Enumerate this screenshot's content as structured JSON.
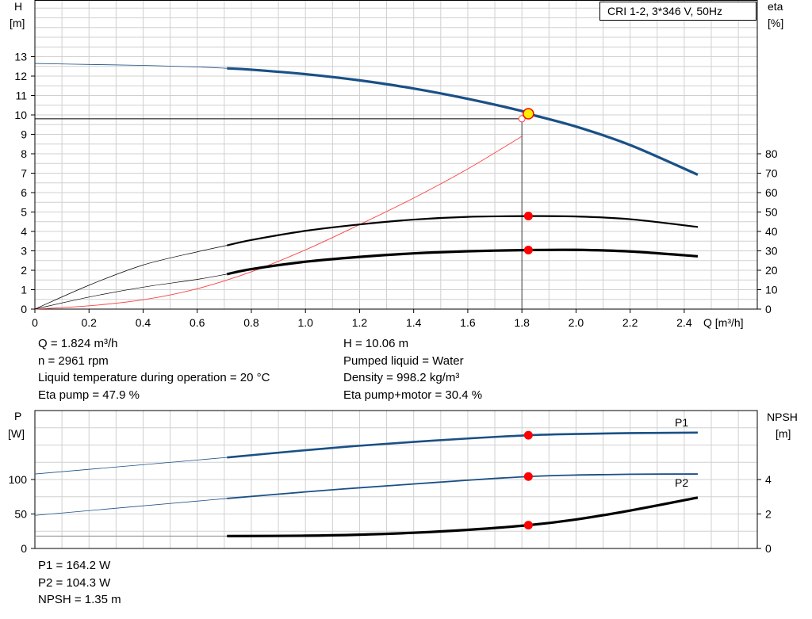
{
  "header": {
    "pump_label": "CRI 1-2, 3*346 V, 50Hz"
  },
  "upper_info": {
    "left": [
      "Q = 1.824 m³/h",
      "n = 2961 rpm",
      "Liquid temperature during operation = 20 °C",
      "Eta pump = 47.9 %"
    ],
    "right": [
      "H = 10.06 m",
      "Pumped liquid = Water",
      "Density = 998.2 kg/m³",
      "Eta pump+motor = 30.4 %"
    ]
  },
  "lower_info": {
    "lines": [
      "P1 = 164.2 W",
      "P2 = 104.3 W",
      "NPSH = 1.35 m"
    ]
  },
  "colors": {
    "head": "#1a5086",
    "power": "#1a5086",
    "efficiency": "#000000",
    "system": "#ff4040",
    "marker": "#ff0000",
    "op_marker": "#ffee00",
    "grid": "#d0d0d0"
  },
  "chart_data": [
    {
      "type": "line",
      "xlabel": "Q [m³/h]",
      "ylabel_left": [
        "H",
        "[m]"
      ],
      "ylabel_right": [
        "eta",
        "[%]"
      ],
      "xlim": [
        0,
        2.5
      ],
      "ylim_left": [
        0,
        14
      ],
      "ylim_right": [
        0,
        80
      ],
      "x_ticks": [
        "0",
        "0.2",
        "0.4",
        "0.6",
        "0.8",
        "1.0",
        "1.2",
        "1.4",
        "1.6",
        "1.8",
        "2.0",
        "2.2",
        "2.4"
      ],
      "y_ticks_left": [
        "0",
        "1",
        "2",
        "3",
        "4",
        "5",
        "6",
        "7",
        "8",
        "9",
        "10",
        "11",
        "12",
        "13"
      ],
      "y_ticks_right": [
        "0",
        "10",
        "20",
        "30",
        "40",
        "50",
        "60",
        "70",
        "80"
      ],
      "grid": true,
      "legend": "top-right",
      "operating_point": {
        "q": 1.824,
        "h": 10.06,
        "eta_pump": 47.9,
        "eta_total": 30.4
      },
      "series": [
        {
          "id": "head",
          "axis": "left",
          "x": [
            0,
            0.2,
            0.4,
            0.6,
            0.71,
            0.8,
            1.0,
            1.2,
            1.4,
            1.6,
            1.8,
            1.824,
            2.0,
            2.2,
            2.45
          ],
          "y": [
            12.65,
            12.6,
            12.55,
            12.47,
            12.4,
            12.33,
            12.1,
            11.78,
            11.36,
            10.83,
            10.2,
            10.06,
            9.4,
            8.45,
            6.92
          ],
          "thin_until": 0.71
        },
        {
          "id": "eta_pump",
          "axis": "right",
          "x": [
            0,
            0.2,
            0.4,
            0.6,
            0.71,
            0.8,
            1.0,
            1.2,
            1.4,
            1.6,
            1.824,
            2.0,
            2.2,
            2.45
          ],
          "y": [
            0,
            12.3,
            22.7,
            29.5,
            32.8,
            35.6,
            40.3,
            43.6,
            46.1,
            47.5,
            47.9,
            47.7,
            46.3,
            42.3
          ],
          "thin_until": 0.71
        },
        {
          "id": "eta_total",
          "axis": "right",
          "x": [
            0,
            0.2,
            0.4,
            0.6,
            0.71,
            0.8,
            1.0,
            1.2,
            1.4,
            1.6,
            1.824,
            2.0,
            2.2,
            2.45
          ],
          "y": [
            0,
            6.2,
            11.3,
            15.3,
            18.0,
            20.6,
            24.4,
            26.9,
            28.7,
            29.8,
            30.4,
            30.5,
            29.7,
            27.2
          ],
          "thin_until": 0.71
        },
        {
          "id": "system",
          "axis": "left",
          "x": [
            0,
            0.2,
            0.4,
            0.6,
            0.8,
            1.0,
            1.2,
            1.4,
            1.6,
            1.8,
            1.8
          ],
          "y": [
            0,
            0.17,
            0.48,
            1.05,
            1.92,
            3.05,
            4.35,
            5.72,
            7.22,
            8.9,
            9.85
          ]
        }
      ]
    },
    {
      "type": "line",
      "xlim": [
        0,
        2.5
      ],
      "ylabel_left": [
        "P",
        "[W]"
      ],
      "ylabel_right": [
        "NPSH",
        "[m]"
      ],
      "ylim_left": [
        0,
        175
      ],
      "ylim_right": [
        0,
        7
      ],
      "y_ticks_left": [
        "0",
        "50",
        "100"
      ],
      "y_ticks_right": [
        "0",
        "2",
        "4"
      ],
      "grid": true,
      "series": [
        {
          "id": "p1",
          "name": "P1",
          "axis": "left",
          "x": [
            0,
            0.71,
            1.0,
            1.2,
            1.4,
            1.6,
            1.824,
            2.0,
            2.2,
            2.45
          ],
          "y": [
            108,
            132,
            142.5,
            149,
            154.5,
            159.5,
            164.2,
            166,
            167.3,
            168
          ],
          "thin_until": 0.71
        },
        {
          "id": "p2",
          "name": "P2",
          "axis": "left",
          "x": [
            0,
            0.71,
            1.0,
            1.2,
            1.4,
            1.6,
            1.824,
            2.0,
            2.2,
            2.45
          ],
          "y": [
            48,
            72.5,
            82,
            88,
            93.5,
            99,
            104.3,
            106.5,
            107.6,
            108
          ],
          "thin_until": 0.71
        },
        {
          "id": "npsh",
          "axis": "right",
          "x": [
            0,
            0.71,
            1.0,
            1.2,
            1.4,
            1.6,
            1.824,
            2.0,
            2.2,
            2.45
          ],
          "y": [
            0.72,
            0.72,
            0.74,
            0.8,
            0.91,
            1.08,
            1.35,
            1.68,
            2.2,
            2.95
          ],
          "thin_until": 0.71
        }
      ]
    }
  ]
}
